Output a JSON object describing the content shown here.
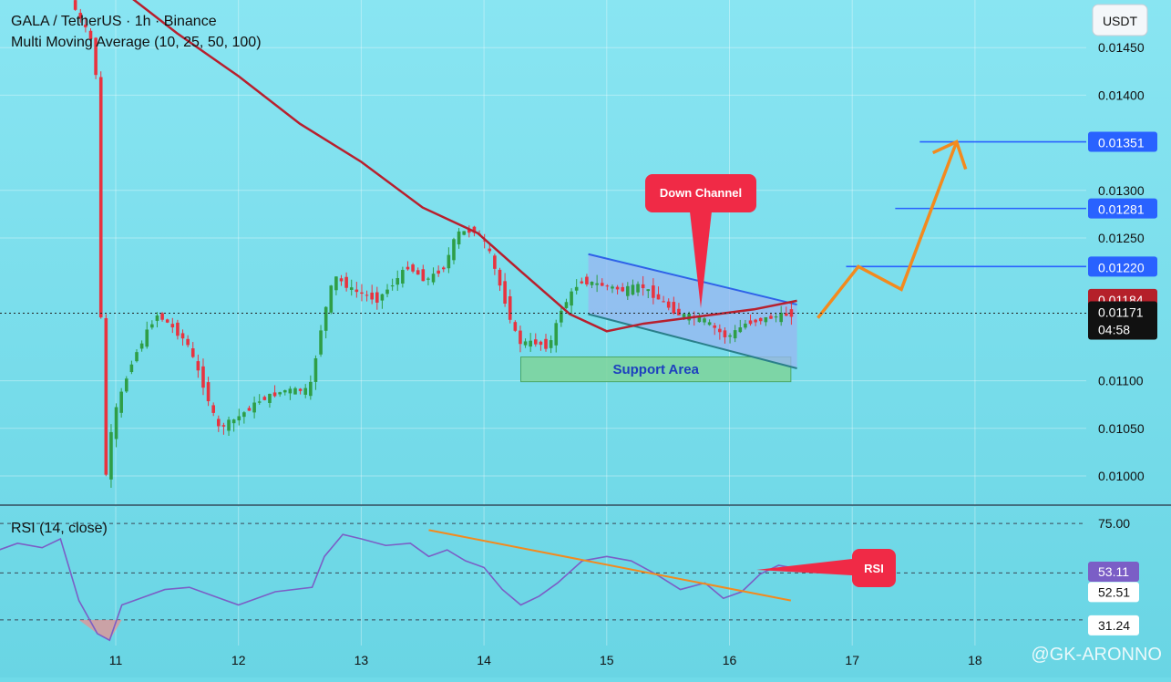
{
  "header": {
    "title": "GALA / TetherUS · 1h · Binance",
    "indicator": "Multi Moving Average (10, 25, 50, 100)"
  },
  "rsi_header": "RSI (14, close)",
  "currency": "USDT",
  "watermark": "@GK-ARONNO",
  "annotations": {
    "down_channel": "Down Channel",
    "support_area": "Support Area",
    "rsi_callout": "RSI"
  },
  "badges": {
    "t1": "0.01351",
    "t2": "0.01281",
    "t3": "0.01220",
    "ma": "0.01184",
    "last": "0.01171",
    "countdown": "04:58",
    "rsi_now": "53.11",
    "rsi_ma": "52.51",
    "rsi_low": "31.24",
    "rsi_top": "75.00"
  },
  "colors": {
    "background": "#6fdae8",
    "up_candle": "#2e9e46",
    "down_candle": "#e8333f",
    "ma_line": "#b81f2d",
    "target_line": "#2962ff",
    "projection": "#f38a1e",
    "rsi_line": "#7b5ec6",
    "callout": "#f02a46"
  },
  "chart_data": [
    {
      "type": "candlestick",
      "title": "GALA / TetherUS · 1h · Binance",
      "x_ticks": [
        "11",
        "12",
        "13",
        "14",
        "15",
        "16",
        "17",
        "18"
      ],
      "y_ticks": [
        "0.01450",
        "0.01400",
        "0.01300",
        "0.01250",
        "0.01100",
        "0.01050",
        "0.01000"
      ],
      "ylim": [
        0.0097,
        0.0149
      ],
      "grid": true,
      "target_levels": [
        0.01351,
        0.01281,
        0.0122
      ],
      "ma_last": 0.01184,
      "last_price": 0.01171,
      "support_area": [
        0.01099,
        0.01125
      ],
      "price_path": [
        [
          10.65,
          0.015
        ],
        [
          10.85,
          0.0145
        ],
        [
          10.88,
          0.0135
        ],
        [
          10.92,
          0.0098
        ],
        [
          11.0,
          0.0106
        ],
        [
          11.15,
          0.0112
        ],
        [
          11.35,
          0.0117
        ],
        [
          11.45,
          0.0116
        ],
        [
          11.6,
          0.0114
        ],
        [
          11.75,
          0.0109
        ],
        [
          11.85,
          0.0105
        ],
        [
          12.0,
          0.0106
        ],
        [
          12.2,
          0.0108
        ],
        [
          12.4,
          0.0109
        ],
        [
          12.6,
          0.0109
        ],
        [
          12.7,
          0.0116
        ],
        [
          12.8,
          0.0121
        ],
        [
          12.95,
          0.01195
        ],
        [
          13.15,
          0.01185
        ],
        [
          13.3,
          0.01205
        ],
        [
          13.4,
          0.0122
        ],
        [
          13.55,
          0.01205
        ],
        [
          13.7,
          0.0122
        ],
        [
          13.8,
          0.01255
        ],
        [
          13.95,
          0.01258
        ],
        [
          14.05,
          0.0124
        ],
        [
          14.15,
          0.012
        ],
        [
          14.3,
          0.0114
        ],
        [
          14.45,
          0.0114
        ],
        [
          14.55,
          0.01135
        ],
        [
          14.65,
          0.01175
        ],
        [
          14.8,
          0.01205
        ],
        [
          15.0,
          0.012
        ],
        [
          15.15,
          0.01195
        ],
        [
          15.3,
          0.012
        ],
        [
          15.45,
          0.01185
        ],
        [
          15.6,
          0.0117
        ],
        [
          15.8,
          0.01165
        ],
        [
          16.0,
          0.01145
        ],
        [
          16.15,
          0.0116
        ],
        [
          16.3,
          0.01165
        ],
        [
          16.5,
          0.0117
        ]
      ],
      "ma_path": [
        [
          10.9,
          0.01525
        ],
        [
          11.5,
          0.01465
        ],
        [
          12.0,
          0.0142
        ],
        [
          12.5,
          0.0137
        ],
        [
          13.0,
          0.0133
        ],
        [
          13.5,
          0.01282
        ],
        [
          13.95,
          0.01255
        ],
        [
          14.3,
          0.01215
        ],
        [
          14.7,
          0.0117
        ],
        [
          15.0,
          0.01152
        ],
        [
          15.3,
          0.0116
        ],
        [
          15.6,
          0.01165
        ],
        [
          15.9,
          0.0117
        ],
        [
          16.2,
          0.01175
        ],
        [
          16.55,
          0.01184
        ]
      ],
      "projection_path": [
        [
          16.72,
          0.01166
        ],
        [
          17.05,
          0.0122
        ],
        [
          17.4,
          0.01196
        ],
        [
          17.85,
          0.01351
        ]
      ],
      "down_channel": {
        "upper": [
          [
            14.85,
            0.01233
          ],
          [
            16.55,
            0.0118
          ]
        ],
        "lower": [
          [
            14.85,
            0.0117
          ],
          [
            16.55,
            0.01113
          ]
        ]
      }
    },
    {
      "type": "line",
      "title": "RSI (14, close)",
      "ylim": [
        20,
        80
      ],
      "levels": [
        75.0,
        53.11,
        52.51,
        31.24
      ],
      "series": [
        {
          "name": "RSI (14, close)",
          "x": [
            10.0,
            10.2,
            10.4,
            10.55,
            10.7,
            10.85,
            10.95,
            11.05,
            11.2,
            11.4,
            11.6,
            11.8,
            12.0,
            12.3,
            12.6,
            12.7,
            12.85,
            13.0,
            13.2,
            13.4,
            13.55,
            13.7,
            13.85,
            14.0,
            14.15,
            14.3,
            14.45,
            14.6,
            14.8,
            15.0,
            15.2,
            15.4,
            15.6,
            15.8,
            15.95,
            16.1,
            16.25,
            16.4,
            16.5
          ],
          "values": [
            62,
            66,
            64,
            68,
            40,
            25,
            22,
            38,
            41,
            45,
            46,
            42,
            38,
            44,
            46,
            60,
            70,
            68,
            65,
            66,
            60,
            63,
            58,
            55,
            45,
            38,
            42,
            48,
            58,
            60,
            58,
            52,
            45,
            48,
            41,
            44,
            52,
            56,
            55
          ]
        }
      ],
      "trendline": [
        [
          13.55,
          72
        ],
        [
          16.5,
          40
        ]
      ]
    }
  ]
}
